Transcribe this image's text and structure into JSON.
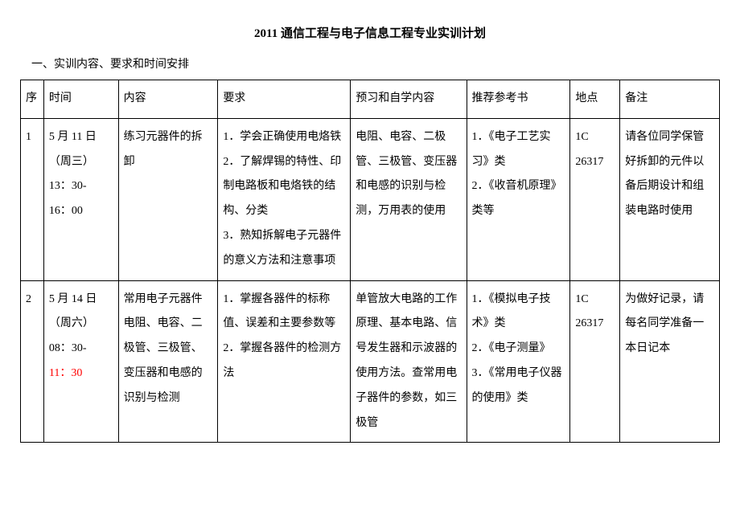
{
  "title": "2011 通信工程与电子信息工程专业实训计划",
  "section_header": "一、实训内容、要求和时间安排",
  "columns": [
    "序",
    "时间",
    "内容",
    "要求",
    "预习和自学内容",
    "推荐参考书",
    "地点",
    "备注"
  ],
  "rows": [
    {
      "seq": "1",
      "time_l1": "5 月 11 日",
      "time_l2": "（周三）",
      "time_l3": "13：30-",
      "time_l4": "16：00",
      "content": "练习元器件的拆卸",
      "req_l1": "1．学会正确使用电烙铁",
      "req_l2": "2．了解焊锡的特性、印制电路板和电烙铁的结构、分类",
      "req_l3": "3．熟知拆解电子元器件的意义方法和注意事项",
      "self": "电阻、电容、二极管、三极管、变压器和电感的识别与检测，万用表的使用",
      "ref_l1": "1．《电子工艺实习》类",
      "ref_l2": "2．《收音机原理》类等",
      "loc_l1": "1C",
      "loc_l2": "26317",
      "note": "请各位同学保管好拆卸的元件以备后期设计和组装电路时使用"
    },
    {
      "seq": "2",
      "time_l1": "5 月 14 日",
      "time_l2": "（周六）",
      "time_l3": "08：30-",
      "time_l4": "11：30",
      "content": "常用电子元器件电阻、电容、二极管、三极管、变压器和电感的识别与检测",
      "req_l1": "1．掌握各器件的标称值、误差和主要参数等",
      "req_l2": "2．掌握各器件的检测方法",
      "self": "单管放大电路的工作原理、基本电路、信号发生器和示波器的使用方法。查常用电子器件的参数，如三极管",
      "ref_l1": "1．《模拟电子技术》类",
      "ref_l2": "2．《电子测量》",
      "ref_l3": "3．《常用电子仪器的使用》类",
      "loc_l1": "1C",
      "loc_l2": "26317",
      "note": "为做好记录，请每名同学准备一本日记本"
    }
  ]
}
